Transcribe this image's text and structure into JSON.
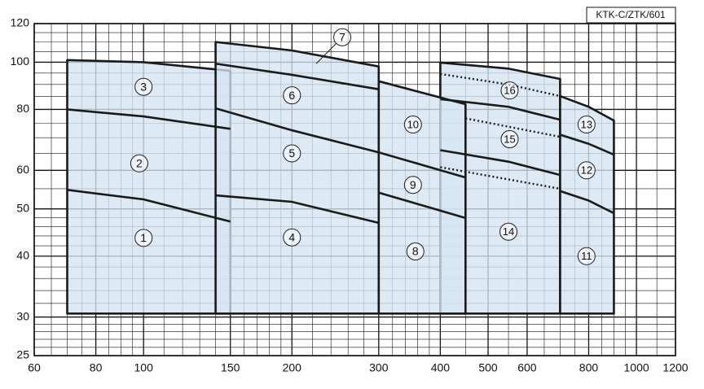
{
  "chart_data": {
    "type": "region",
    "tag": "KTK-C/ZTK/601",
    "xlog": true,
    "ylog": true,
    "xlim": [
      60,
      1200
    ],
    "ylim": [
      25,
      120
    ],
    "xticks": [
      60,
      80,
      100,
      150,
      200,
      300,
      400,
      500,
      600,
      800,
      1000,
      1200
    ],
    "yticks": [
      25,
      30,
      40,
      50,
      60,
      80,
      100,
      120
    ],
    "xgrid": [
      65,
      70,
      75,
      85,
      90,
      95,
      110,
      120,
      130,
      140,
      160,
      170,
      180,
      190,
      220,
      240,
      260,
      280,
      320,
      340,
      360,
      380,
      450,
      550,
      650,
      700,
      750,
      850,
      900,
      950,
      1100
    ],
    "ygrid": [
      26,
      27,
      28,
      29,
      32,
      34,
      36,
      38,
      42,
      44,
      46,
      48,
      55,
      65,
      70,
      75,
      85,
      90,
      95,
      105,
      110,
      115
    ],
    "fill": "#d3e4f3",
    "line_color": "#1a1a1a",
    "grid_color": "#111111",
    "panels": [
      {
        "x": [
          70,
          70,
          100,
          150,
          150
        ],
        "y": [
          30.5,
          101,
          100,
          96,
          30.5
        ]
      },
      {
        "x": [
          140,
          140,
          200,
          300,
          300
        ],
        "y": [
          30.5,
          110,
          105.7,
          98,
          30.5
        ]
      },
      {
        "x": [
          400,
          400,
          550,
          700,
          700
        ],
        "y": [
          30.5,
          99.8,
          97,
          92.4,
          30.5
        ]
      },
      {
        "x": [
          300,
          300,
          450,
          450
        ],
        "y": [
          30.5,
          91.4,
          82,
          30.5
        ]
      },
      {
        "x": [
          700,
          700,
          800,
          900,
          900
        ],
        "y": [
          30.5,
          85.2,
          81,
          75.9,
          30.5
        ]
      }
    ],
    "curves": [
      {
        "x": [
          70,
          100,
          150
        ],
        "y": [
          80,
          77.4,
          73
        ],
        "dashed": false
      },
      {
        "x": [
          70,
          100,
          150
        ],
        "y": [
          54.7,
          52.3,
          47.1
        ],
        "dashed": false
      },
      {
        "x": [
          140,
          200,
          300
        ],
        "y": [
          99.3,
          94.2,
          88
        ],
        "dashed": false
      },
      {
        "x": [
          140,
          200,
          300
        ],
        "y": [
          80.4,
          72.5,
          65.3
        ],
        "dashed": false
      },
      {
        "x": [
          140,
          200,
          300
        ],
        "y": [
          53.3,
          51.7,
          46.8
        ],
        "dashed": false
      },
      {
        "x": [
          300,
          450
        ],
        "y": [
          65.3,
          58
        ],
        "dashed": false
      },
      {
        "x": [
          300,
          450
        ],
        "y": [
          54,
          47.9
        ],
        "dashed": false
      },
      {
        "x": [
          400,
          550,
          700
        ],
        "y": [
          84,
          81,
          76.2
        ],
        "dashed": false
      },
      {
        "x": [
          400,
          550,
          700
        ],
        "y": [
          66,
          62.5,
          58.7
        ],
        "dashed": false
      },
      {
        "x": [
          700,
          800,
          900
        ],
        "y": [
          71,
          68,
          64.6
        ],
        "dashed": false
      },
      {
        "x": [
          700,
          800,
          900
        ],
        "y": [
          54.4,
          52,
          49
        ],
        "dashed": false
      },
      {
        "x": [
          400,
          550,
          700
        ],
        "y": [
          94.6,
          90,
          85.2
        ],
        "dashed": true
      },
      {
        "x": [
          450,
          700
        ],
        "y": [
          76.7,
          70.3
        ],
        "dashed": true
      },
      {
        "x": [
          400,
          700
        ],
        "y": [
          60.9,
          55
        ],
        "dashed": true
      }
    ],
    "labels": [
      {
        "text": "1",
        "x": 100,
        "y": 43.6
      },
      {
        "text": "2",
        "x": 98,
        "y": 62
      },
      {
        "text": "3",
        "x": 100,
        "y": 89
      },
      {
        "text": "4",
        "x": 200,
        "y": 43.7
      },
      {
        "text": "5",
        "x": 200,
        "y": 65
      },
      {
        "text": "6",
        "x": 200,
        "y": 85.5
      },
      {
        "text": "7",
        "x": 253,
        "y": 112.5,
        "to": [
          224,
          99.3
        ]
      },
      {
        "text": "8",
        "x": 356,
        "y": 40.9
      },
      {
        "text": "9",
        "x": 352,
        "y": 56
      },
      {
        "text": "10",
        "x": 352,
        "y": 74.5
      },
      {
        "text": "11",
        "x": 792,
        "y": 40
      },
      {
        "text": "12",
        "x": 792,
        "y": 60
      },
      {
        "text": "13",
        "x": 792,
        "y": 74.5
      },
      {
        "text": "14",
        "x": 550,
        "y": 44.9
      },
      {
        "text": "15",
        "x": 553,
        "y": 69.5
      },
      {
        "text": "16",
        "x": 553,
        "y": 87.5
      }
    ]
  }
}
